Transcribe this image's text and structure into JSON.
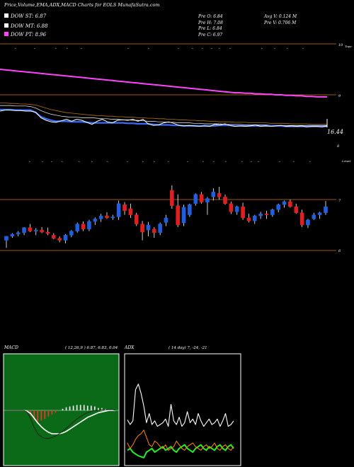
{
  "header": {
    "title": "Price,Volume,EMA,ADX,MACD Charts for EOLS MunafaSutra.com",
    "dow_st": "DOW ST: 6.87",
    "dow_mt": "DOW MT: 6.88",
    "dow_pt": "DOW PT: 8.96",
    "prev_o": "Pre   O: 6.84",
    "prev_h": "Pre   H: 7.08",
    "prev_l": "Pre   L: 6.84",
    "prev_c": "Pre   C: 6.97",
    "avg_v": "Avg V: 0.124   M",
    "pre_v": "Pre   V: 0.706   M"
  },
  "colors": {
    "dow_st": "#ffffff",
    "dow_mt": "#ffffff",
    "dow_pt": "#ff44ff",
    "up": "#1f5fe0",
    "down": "#e02020",
    "ref_line": "#9b5a00",
    "ema_fast": "#3a6cff",
    "ema_slow": "#ff44ff",
    "macd_bg": "#0b6a18",
    "adx_green": "#22ee22",
    "adx_orange": "#ff8800"
  },
  "chart_data": [
    {
      "type": "line",
      "name": "EMA panel",
      "y_ticks": [
        "10",
        "9",
        "8"
      ],
      "tick_suffix": "Tope",
      "value_label": "16.44",
      "series": [
        {
          "name": "price",
          "values": [
            8.68,
            8.7,
            8.7,
            8.69,
            8.69,
            8.68,
            8.68,
            8.66,
            8.55,
            8.5,
            8.47,
            8.46,
            8.49,
            8.52,
            8.48,
            8.52,
            8.5,
            8.46,
            8.42,
            8.48,
            8.52,
            8.47,
            8.45,
            8.5,
            8.51,
            8.5,
            8.52,
            8.48,
            8.52,
            8.43,
            8.4,
            8.41,
            8.45,
            8.47,
            8.44,
            8.4,
            8.39,
            8.4,
            8.39,
            8.38,
            8.39,
            8.38,
            8.42,
            8.41,
            8.43,
            8.4,
            8.38,
            8.39,
            8.38,
            8.39,
            8.41,
            8.38,
            8.39,
            8.38,
            8.39,
            8.4,
            8.38,
            8.39,
            8.38,
            8.39,
            8.37,
            8.38,
            8.38,
            8.37,
            8.39
          ]
        },
        {
          "name": "ema-fast",
          "values": [
            8.71,
            8.71,
            8.71,
            8.7,
            8.7,
            8.7,
            8.7,
            8.65,
            8.57,
            8.53,
            8.5,
            8.48,
            8.48,
            8.48,
            8.47,
            8.47,
            8.47,
            8.46,
            8.45,
            8.45,
            8.45,
            8.45,
            8.45,
            8.45,
            8.45,
            8.44,
            8.44,
            8.43,
            8.43,
            8.43,
            8.42,
            8.41,
            8.41,
            8.41,
            8.4,
            8.4,
            8.39,
            8.39,
            8.39,
            8.39,
            8.39,
            8.39,
            8.39,
            8.4,
            8.4,
            8.4,
            8.39,
            8.39,
            8.39,
            8.39,
            8.39,
            8.39,
            8.39,
            8.39,
            8.39,
            8.39,
            8.38,
            8.38,
            8.38,
            8.38,
            8.38,
            8.38,
            8.38,
            8.38,
            8.38
          ]
        },
        {
          "name": "ema-mid",
          "values": [
            8.79,
            8.79,
            8.79,
            8.78,
            8.78,
            8.78,
            8.77,
            8.74,
            8.69,
            8.65,
            8.62,
            8.6,
            8.58,
            8.57,
            8.56,
            8.56,
            8.55,
            8.55,
            8.55,
            8.54,
            8.53,
            8.53,
            8.52,
            8.52,
            8.51,
            8.51,
            8.5,
            8.5,
            8.49,
            8.48,
            8.48,
            8.47,
            8.47,
            8.46,
            8.46,
            8.45,
            8.45,
            8.45,
            8.44,
            8.44,
            8.43,
            8.43,
            8.43,
            8.43,
            8.42,
            8.42,
            8.42,
            8.42,
            8.41,
            8.41,
            8.41,
            8.41,
            8.41,
            8.4,
            8.4,
            8.4,
            8.4,
            8.4,
            8.4,
            8.4,
            8.4,
            8.4,
            8.4,
            8.4,
            8.4
          ]
        },
        {
          "name": "ema-orange",
          "values": [
            8.84,
            8.84,
            8.83,
            8.83,
            8.82,
            8.82,
            8.81,
            8.8,
            8.77,
            8.74,
            8.71,
            8.69,
            8.67,
            8.65,
            8.64,
            8.63,
            8.62,
            8.61,
            8.6,
            8.59,
            8.59,
            8.58,
            8.58,
            8.57,
            8.57,
            8.56,
            8.56,
            8.55,
            8.55,
            8.54,
            8.54,
            8.53,
            8.53,
            8.52,
            8.52,
            8.51,
            8.51,
            8.5,
            8.5,
            8.49,
            8.49,
            8.48,
            8.48,
            8.47,
            8.47,
            8.47,
            8.46,
            8.46,
            8.46,
            8.45,
            8.45,
            8.45,
            8.45,
            8.44,
            8.44,
            8.44,
            8.44,
            8.43,
            8.43,
            8.43,
            8.43,
            8.42,
            8.42,
            8.42,
            8.42
          ]
        },
        {
          "name": "ema-slow",
          "values": [
            9.5,
            9.49,
            9.48,
            9.47,
            9.46,
            9.45,
            9.44,
            9.43,
            9.42,
            9.41,
            9.4,
            9.39,
            9.38,
            9.37,
            9.36,
            9.35,
            9.34,
            9.33,
            9.32,
            9.31,
            9.3,
            9.29,
            9.28,
            9.27,
            9.26,
            9.25,
            9.24,
            9.23,
            9.22,
            9.21,
            9.2,
            9.19,
            9.18,
            9.17,
            9.16,
            9.15,
            9.14,
            9.13,
            9.12,
            9.11,
            9.1,
            9.09,
            9.08,
            9.07,
            9.06,
            9.05,
            9.04,
            9.04,
            9.03,
            9.03,
            9.02,
            9.02,
            9.01,
            9.01,
            9.0,
            9.0,
            8.99,
            8.99,
            8.98,
            8.98,
            8.97,
            8.97,
            8.96,
            8.96,
            8.96
          ]
        }
      ],
      "ref_lines": [
        10.0,
        9.0
      ]
    },
    {
      "type": "candlestick",
      "name": "Price panel",
      "y_ticks": [
        "7",
        "6"
      ],
      "tick_suffix": "Lower",
      "ref_lines": [
        7.0,
        6.0
      ],
      "candles": [
        {
          "o": 6.2,
          "h": 6.28,
          "l": 6.05,
          "c": 6.28
        },
        {
          "o": 6.28,
          "h": 6.34,
          "l": 6.25,
          "c": 6.32
        },
        {
          "o": 6.32,
          "h": 6.38,
          "l": 6.28,
          "c": 6.35
        },
        {
          "o": 6.35,
          "h": 6.46,
          "l": 6.3,
          "c": 6.45
        },
        {
          "o": 6.45,
          "h": 6.52,
          "l": 6.36,
          "c": 6.38
        },
        {
          "o": 6.38,
          "h": 6.44,
          "l": 6.3,
          "c": 6.4
        },
        {
          "o": 6.4,
          "h": 6.46,
          "l": 6.34,
          "c": 6.36
        },
        {
          "o": 6.36,
          "h": 6.45,
          "l": 6.3,
          "c": 6.33
        },
        {
          "o": 6.3,
          "h": 6.34,
          "l": 6.22,
          "c": 6.24
        },
        {
          "o": 6.24,
          "h": 6.28,
          "l": 6.16,
          "c": 6.2
        },
        {
          "o": 6.2,
          "h": 6.32,
          "l": 6.14,
          "c": 6.3
        },
        {
          "o": 6.3,
          "h": 6.4,
          "l": 6.26,
          "c": 6.38
        },
        {
          "o": 6.38,
          "h": 6.55,
          "l": 6.35,
          "c": 6.52
        },
        {
          "o": 6.52,
          "h": 6.57,
          "l": 6.38,
          "c": 6.42
        },
        {
          "o": 6.42,
          "h": 6.6,
          "l": 6.38,
          "c": 6.57
        },
        {
          "o": 6.57,
          "h": 6.65,
          "l": 6.5,
          "c": 6.62
        },
        {
          "o": 6.62,
          "h": 6.72,
          "l": 6.56,
          "c": 6.68
        },
        {
          "o": 6.68,
          "h": 6.75,
          "l": 6.62,
          "c": 6.64
        },
        {
          "o": 6.64,
          "h": 6.7,
          "l": 6.6,
          "c": 6.66
        },
        {
          "o": 6.66,
          "h": 6.98,
          "l": 6.6,
          "c": 6.92
        },
        {
          "o": 6.9,
          "h": 6.95,
          "l": 6.7,
          "c": 6.78
        },
        {
          "o": 6.82,
          "h": 6.92,
          "l": 6.64,
          "c": 6.7
        },
        {
          "o": 6.7,
          "h": 6.74,
          "l": 6.48,
          "c": 6.52
        },
        {
          "o": 6.52,
          "h": 6.58,
          "l": 6.2,
          "c": 6.36
        },
        {
          "o": 6.4,
          "h": 6.56,
          "l": 6.28,
          "c": 6.5
        },
        {
          "o": 6.42,
          "h": 6.46,
          "l": 6.25,
          "c": 6.35
        },
        {
          "o": 6.35,
          "h": 6.55,
          "l": 6.3,
          "c": 6.52
        },
        {
          "o": 6.55,
          "h": 6.7,
          "l": 6.48,
          "c": 6.64
        },
        {
          "o": 7.18,
          "h": 7.28,
          "l": 6.82,
          "c": 6.88
        },
        {
          "o": 6.88,
          "h": 7.1,
          "l": 6.46,
          "c": 6.5
        },
        {
          "o": 6.54,
          "h": 6.9,
          "l": 6.48,
          "c": 6.85
        },
        {
          "o": 6.7,
          "h": 6.92,
          "l": 6.66,
          "c": 6.9
        },
        {
          "o": 6.92,
          "h": 7.12,
          "l": 6.88,
          "c": 7.1
        },
        {
          "o": 7.1,
          "h": 7.15,
          "l": 6.92,
          "c": 6.95
        },
        {
          "o": 6.95,
          "h": 7.05,
          "l": 6.7,
          "c": 7.02
        },
        {
          "o": 7.05,
          "h": 7.22,
          "l": 6.98,
          "c": 7.15
        },
        {
          "o": 7.12,
          "h": 7.25,
          "l": 7.0,
          "c": 7.05
        },
        {
          "o": 7.05,
          "h": 7.1,
          "l": 6.9,
          "c": 6.92
        },
        {
          "o": 6.92,
          "h": 6.96,
          "l": 6.72,
          "c": 6.76
        },
        {
          "o": 6.76,
          "h": 6.88,
          "l": 6.7,
          "c": 6.86
        },
        {
          "o": 6.86,
          "h": 6.94,
          "l": 6.6,
          "c": 6.64
        },
        {
          "o": 6.64,
          "h": 6.72,
          "l": 6.55,
          "c": 6.58
        },
        {
          "o": 6.58,
          "h": 6.7,
          "l": 6.52,
          "c": 6.68
        },
        {
          "o": 6.68,
          "h": 6.76,
          "l": 6.62,
          "c": 6.72
        },
        {
          "o": 6.72,
          "h": 6.78,
          "l": 6.62,
          "c": 6.7
        },
        {
          "o": 6.7,
          "h": 6.82,
          "l": 6.66,
          "c": 6.8
        },
        {
          "o": 6.8,
          "h": 6.92,
          "l": 6.75,
          "c": 6.9
        },
        {
          "o": 6.9,
          "h": 6.98,
          "l": 6.84,
          "c": 6.96
        },
        {
          "o": 6.96,
          "h": 7.0,
          "l": 6.84,
          "c": 6.86
        },
        {
          "o": 6.86,
          "h": 6.92,
          "l": 6.72,
          "c": 6.74
        },
        {
          "o": 6.74,
          "h": 6.8,
          "l": 6.46,
          "c": 6.5
        },
        {
          "o": 6.5,
          "h": 6.62,
          "l": 6.44,
          "c": 6.6
        },
        {
          "o": 6.62,
          "h": 6.74,
          "l": 6.6,
          "c": 6.7
        },
        {
          "o": 6.7,
          "h": 6.76,
          "l": 6.62,
          "c": 6.74
        },
        {
          "o": 6.74,
          "h": 6.97,
          "l": 6.7,
          "c": 6.86
        }
      ]
    },
    {
      "type": "line",
      "name": "MACD panel",
      "title": "MACD",
      "params": "( 12,26,9 ) 6.87, 6.83, 0.04",
      "series": [
        {
          "name": "macd",
          "values": [
            0.0,
            0.0,
            0.0,
            0.0,
            0.0,
            0.0,
            -0.02,
            -0.1,
            -0.22,
            -0.3,
            -0.34,
            -0.36,
            -0.36,
            -0.35,
            -0.33,
            -0.3,
            -0.27,
            -0.23,
            -0.19,
            -0.15,
            -0.11,
            -0.08,
            -0.05,
            -0.03,
            -0.01,
            0.0,
            0.0,
            0.01,
            0.01,
            0.01,
            0.01,
            0.0
          ]
        },
        {
          "name": "signal",
          "values": [
            0.0,
            0.0,
            0.0,
            0.0,
            0.0,
            0.0,
            -0.01,
            -0.04,
            -0.1,
            -0.16,
            -0.21,
            -0.25,
            -0.28,
            -0.3,
            -0.3,
            -0.3,
            -0.29,
            -0.27,
            -0.24,
            -0.21,
            -0.18,
            -0.15,
            -0.12,
            -0.09,
            -0.07,
            -0.05,
            -0.03,
            -0.02,
            -0.01,
            0.0,
            0.0,
            0.0
          ]
        },
        {
          "name": "hist",
          "values": [
            0.0,
            0.0,
            0.0,
            0.0,
            0.0,
            0.0,
            -0.01,
            -0.06,
            -0.12,
            -0.14,
            -0.13,
            -0.11,
            -0.08,
            -0.05,
            -0.03,
            0.0,
            0.02,
            0.04,
            0.05,
            0.06,
            0.07,
            0.07,
            0.07,
            0.06,
            0.06,
            0.05,
            0.03,
            0.03,
            0.02,
            0.01,
            0.01,
            0.0
          ]
        }
      ],
      "ylim": [
        -0.45,
        0.45
      ]
    },
    {
      "type": "line",
      "name": "ADX panel",
      "title": "ADX",
      "params": "( 14  day) 7,  -24,  -21",
      "series": [
        {
          "name": "adx",
          "values": [
            45,
            40,
            44,
            78,
            84,
            74,
            60,
            42,
            52,
            40,
            44,
            38,
            40,
            42,
            46,
            38,
            62,
            44,
            40,
            48,
            38,
            42,
            54,
            42,
            46,
            40,
            52,
            44,
            38,
            42,
            46,
            40,
            42,
            46,
            38,
            44,
            52,
            38,
            40,
            44
          ]
        },
        {
          "name": "plus-di",
          "values": [
            20,
            14,
            18,
            24,
            28,
            30,
            34,
            26,
            18,
            16,
            22,
            20,
            16,
            14,
            18,
            12,
            14,
            16,
            22,
            18,
            14,
            12,
            16,
            18,
            20,
            16,
            14,
            12,
            16,
            18,
            14,
            16,
            20,
            14,
            12,
            16,
            18,
            14,
            12,
            16
          ]
        },
        {
          "name": "minus-di",
          "values": [
            12,
            14,
            10,
            8,
            6,
            5,
            4,
            10,
            12,
            14,
            10,
            12,
            14,
            16,
            12,
            14,
            16,
            12,
            10,
            14,
            16,
            18,
            14,
            12,
            10,
            14,
            16,
            18,
            14,
            12,
            16,
            14,
            12,
            16,
            18,
            14,
            12,
            16,
            18,
            14
          ]
        }
      ],
      "ylim": [
        0,
        100
      ]
    }
  ]
}
